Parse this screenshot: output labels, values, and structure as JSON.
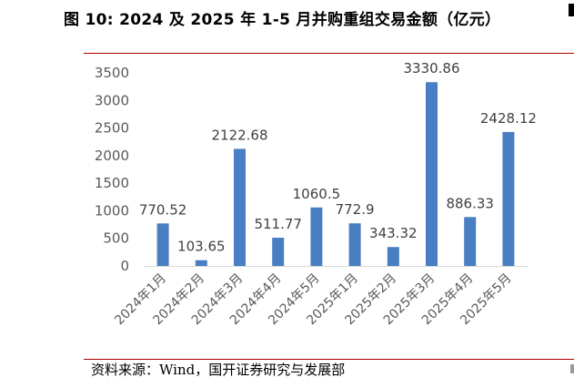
{
  "title": "图 10: 2024 及 2025 年 1-5 月并购重组交易金额（亿元）",
  "source": "资料来源：Wind，国开证券研究与发展部",
  "chart_data": {
    "type": "bar",
    "title": "图 10: 2024 及 2025 年 1-5 月并购重组交易金额（亿元）",
    "categories": [
      "2024年1月",
      "2024年2月",
      "2024年3月",
      "2024年4月",
      "2024年5月",
      "2025年1月",
      "2025年2月",
      "2025年3月",
      "2025年4月",
      "2025年5月"
    ],
    "values": [
      770.52,
      103.65,
      2122.68,
      511.77,
      1060.5,
      772.9,
      343.32,
      3330.86,
      886.33,
      2428.12
    ],
    "value_labels": [
      "770.52",
      "103.65",
      "2122.68",
      "511.77",
      "1060.5",
      "772.9",
      "343.32",
      "3330.86",
      "886.33",
      "2428.12"
    ],
    "yticks": [
      "0",
      "500",
      "1000",
      "1500",
      "2000",
      "2500",
      "3000",
      "3500"
    ],
    "ylim": [
      0,
      3500
    ],
    "xlabel": "",
    "ylabel": "",
    "grid": false,
    "legend": "none",
    "bar_color": "#4a7ec2"
  }
}
